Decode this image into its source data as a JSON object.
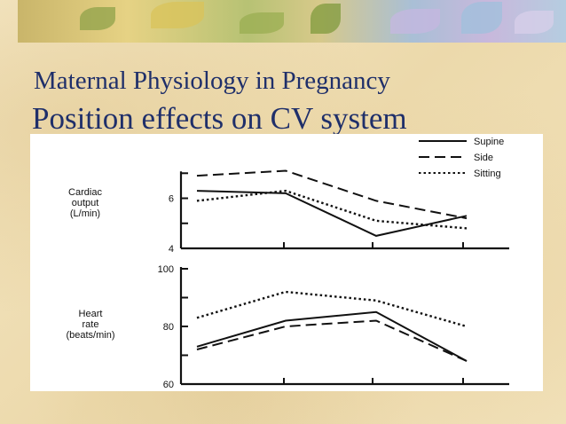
{
  "slide": {
    "title_line1": "Maternal Physiology in Pregnancy",
    "title_line2": "Position effects on CV system"
  },
  "colors": {
    "title": "#1f2f6a",
    "background": "#f1e2bb",
    "figure_background": "#ffffff",
    "ink": "#111111"
  },
  "chart_data": [
    {
      "type": "line",
      "ylabel_lines": [
        "Cardiac",
        "output",
        "(L/min)"
      ],
      "yticks": [
        4,
        5,
        6,
        7
      ],
      "ytick_labels": [
        "4",
        "",
        "6",
        ""
      ],
      "ylim": [
        4,
        7.4
      ],
      "x_points": 4,
      "legend": {
        "placement": "top-right"
      },
      "series": [
        {
          "name": "Supine",
          "style": "solid",
          "values": [
            6.3,
            6.2,
            4.5,
            5.3
          ]
        },
        {
          "name": "Side",
          "style": "dashed",
          "values": [
            6.9,
            7.1,
            5.9,
            5.2
          ]
        },
        {
          "name": "Sitting",
          "style": "dotted",
          "values": [
            5.9,
            6.3,
            5.1,
            4.8
          ]
        }
      ]
    },
    {
      "type": "line",
      "ylabel_lines": [
        "Heart",
        "rate",
        "(beats/min)"
      ],
      "yticks": [
        60,
        70,
        80,
        90,
        100
      ],
      "ytick_labels": [
        "60",
        "",
        "80",
        "",
        "100"
      ],
      "ylim": [
        60,
        100
      ],
      "x_points": 4,
      "series": [
        {
          "name": "Supine",
          "style": "solid",
          "values": [
            73,
            82,
            85,
            68
          ]
        },
        {
          "name": "Side",
          "style": "dashed",
          "values": [
            72,
            80,
            82,
            68
          ]
        },
        {
          "name": "Sitting",
          "style": "dotted",
          "values": [
            83,
            92,
            89,
            80
          ]
        }
      ]
    }
  ]
}
